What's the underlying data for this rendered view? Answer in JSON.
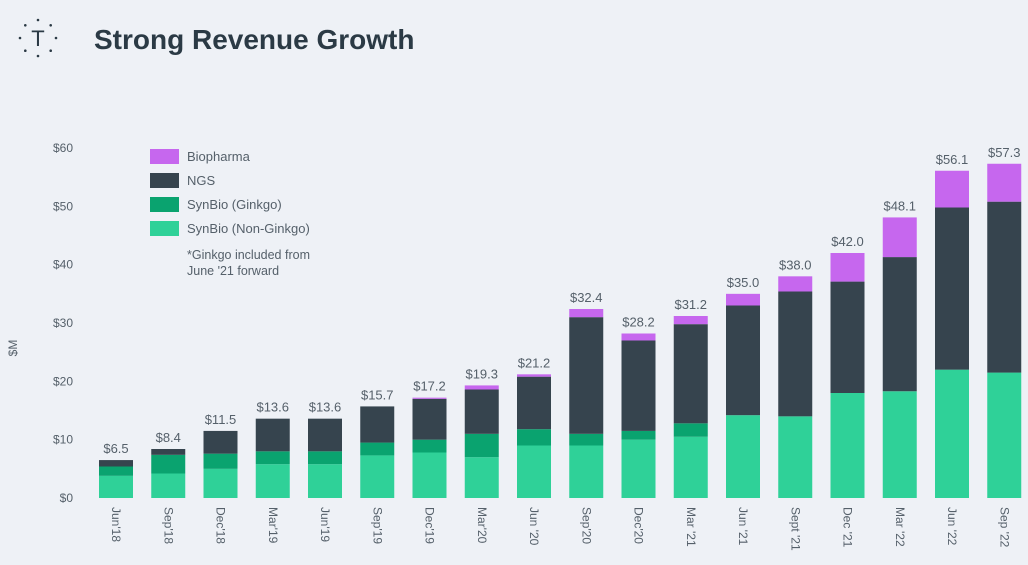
{
  "header": {
    "logo_letter": "T",
    "title": "Strong Revenue Growth"
  },
  "colors": {
    "biopharma": "#c667ee",
    "ngs": "#36444e",
    "synbio_ginkgo": "#0aa36f",
    "synbio_non_ginkgo": "#2fd198",
    "text": "#55606a",
    "background": "#eef1f6"
  },
  "chart_data": {
    "type": "bar",
    "stacked": true,
    "ylabel": "$M",
    "ylim": [
      0,
      60
    ],
    "yticks": [
      "$0",
      "$10",
      "$20",
      "$30",
      "$40",
      "$50",
      "$60"
    ],
    "categories": [
      "Jun'18",
      "Sep'18",
      "Dec'18",
      "Mar'19",
      "Jun'19",
      "Sep'19",
      "Dec'19",
      "Mar'20",
      "Jun '20",
      "Sep'20",
      "Dec'20",
      "Mar '21",
      "Jun '21",
      "Sept '21",
      "Dec '21",
      "Mar '22",
      "Jun '22",
      "Sep '22"
    ],
    "totals_labels": [
      "$6.5",
      "$8.4",
      "$11.5",
      "$13.6",
      "$13.6",
      "$15.7",
      "$17.2",
      "$19.3",
      "$21.2",
      "$32.4",
      "$28.2",
      "$31.2",
      "$35.0",
      "$38.0",
      "$42.0",
      "$48.1",
      "$56.1",
      "$57.3"
    ],
    "series": [
      {
        "name": "SynBio (Non-Ginkgo)",
        "color_key": "synbio_non_ginkgo",
        "values": [
          3.8,
          4.2,
          5.0,
          5.8,
          5.8,
          7.3,
          7.8,
          7.0,
          9.0,
          9.0,
          10.0,
          10.5,
          14.2,
          14.0,
          18.0,
          18.3,
          22.0,
          21.5
        ]
      },
      {
        "name": "SynBio (Ginkgo)",
        "color_key": "synbio_ginkgo",
        "values": [
          1.6,
          3.2,
          2.6,
          2.2,
          2.2,
          2.2,
          2.2,
          4.0,
          2.8,
          2.0,
          1.5,
          2.3,
          0.0,
          0.0,
          0.0,
          0.0,
          0.0,
          0.0
        ]
      },
      {
        "name": "NGS",
        "color_key": "ngs",
        "values": [
          1.1,
          1.0,
          3.9,
          5.6,
          5.6,
          6.2,
          7.0,
          7.6,
          9.0,
          20.0,
          15.5,
          17.0,
          18.8,
          21.4,
          19.1,
          23.0,
          27.8,
          29.3
        ]
      },
      {
        "name": "Biopharma",
        "color_key": "biopharma",
        "values": [
          0.0,
          0.0,
          0.0,
          0.0,
          0.0,
          0.0,
          0.2,
          0.7,
          0.4,
          1.4,
          1.2,
          1.4,
          2.0,
          2.6,
          4.9,
          6.8,
          6.3,
          6.5
        ]
      }
    ],
    "legend": {
      "placement": "top-left",
      "items": [
        {
          "label": "Biopharma",
          "color_key": "biopharma"
        },
        {
          "label": "NGS",
          "color_key": "ngs"
        },
        {
          "label": "SynBio (Ginkgo)",
          "color_key": "synbio_ginkgo"
        },
        {
          "label": "SynBio (Non-Ginkgo)",
          "color_key": "synbio_non_ginkgo"
        }
      ],
      "note_lines": [
        "*Ginkgo included from",
        "June '21 forward"
      ]
    },
    "grid": false
  }
}
